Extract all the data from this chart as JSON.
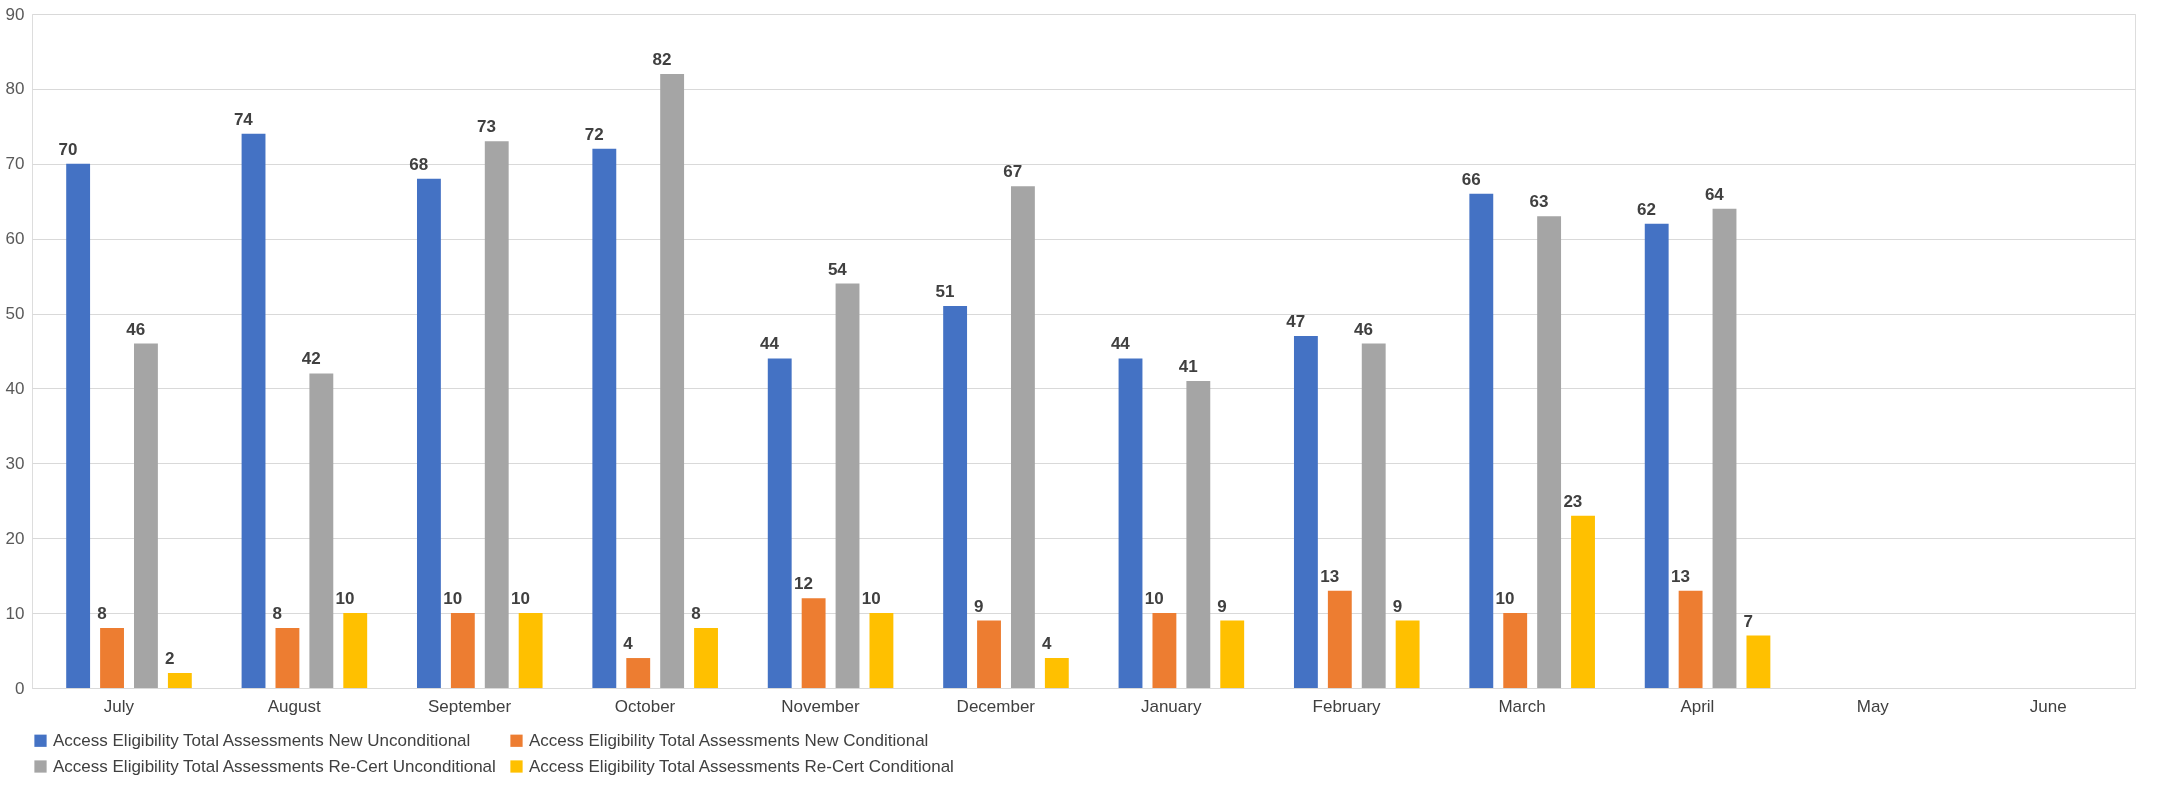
{
  "chart_data": {
    "type": "bar",
    "categories": [
      "July",
      "August",
      "September",
      "October",
      "November",
      "December",
      "January",
      "February",
      "March",
      "April",
      "May",
      "June"
    ],
    "series": [
      {
        "name": "Access Eligibility Total Assessments New Unconditional",
        "color": "#4472c4",
        "values": [
          70,
          74,
          68,
          72,
          44,
          51,
          44,
          47,
          66,
          62,
          null,
          null
        ]
      },
      {
        "name": "Access Eligibility Total Assessments New Conditional",
        "color": "#ed7d31",
        "values": [
          8,
          8,
          10,
          4,
          12,
          9,
          10,
          13,
          10,
          13,
          null,
          null
        ]
      },
      {
        "name": "Access Eligibility Total Assessments Re-Cert Unconditional",
        "color": "#a5a5a5",
        "values": [
          46,
          42,
          73,
          82,
          54,
          67,
          41,
          46,
          63,
          64,
          null,
          null
        ]
      },
      {
        "name": "Access Eligibility Total Assessments Re-Cert Conditional",
        "color": "#ffc000",
        "values": [
          2,
          10,
          10,
          8,
          10,
          4,
          9,
          9,
          23,
          7,
          null,
          null
        ]
      }
    ],
    "ylim": [
      0,
      90
    ],
    "yticks": [
      0,
      10,
      20,
      30,
      40,
      50,
      60,
      70,
      80,
      90
    ],
    "grid": "y",
    "legend": "bottom",
    "data_labels": true
  }
}
